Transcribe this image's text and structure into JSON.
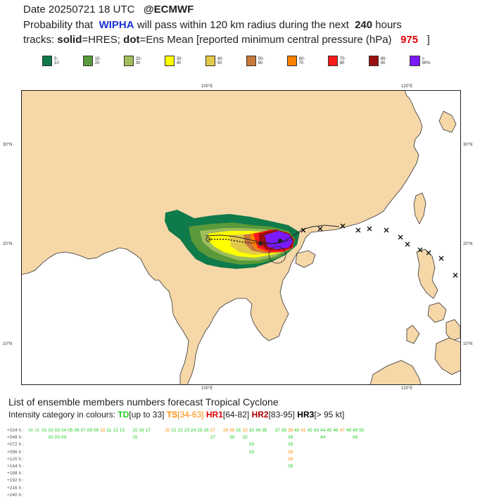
{
  "header": {
    "date_prefix": "Date",
    "date": "20250721",
    "time": "18 UTC",
    "source": "@ECMWF",
    "prob_prefix": "Probability that",
    "storm_name": "WIPHA",
    "prob_mid": "will pass within 120 km radius during the next",
    "hours": "240",
    "hours_suffix": "hours",
    "tracks_prefix": "tracks:",
    "solid_label": "solid",
    "solid_desc": "=HRES;",
    "dot_label": "dot",
    "dot_desc": "=Ens Mean [reported minimum central pressure (hPa)",
    "pressure": "975",
    "close_bracket": "]"
  },
  "legend": [
    {
      "label": "5-10",
      "color": "#0f7a4a"
    },
    {
      "label": "10-20",
      "color": "#5a9a3a"
    },
    {
      "label": "20-30",
      "color": "#9fbd5a"
    },
    {
      "label": "30-40",
      "color": "#ffff00"
    },
    {
      "label": "40-50",
      "color": "#e3c94a"
    },
    {
      "label": "50-60",
      "color": "#c8783a"
    },
    {
      "label": "60-70",
      "color": "#ff7f00"
    },
    {
      "label": "70-80",
      "color": "#ff1a1a"
    },
    {
      "label": "80-90",
      "color": "#9a0f0f"
    },
    {
      "label": "> 90%",
      "color": "#7a1aff"
    }
  ],
  "map": {
    "lon_ticks_top": [
      "100°E",
      "120°E"
    ],
    "lon_ticks_bottom": [
      "100°E",
      "120°E"
    ],
    "lat_ticks_left": [
      "30°N",
      "20°N",
      "10°N"
    ],
    "lat_ticks_right": [
      "30°N",
      "20°N",
      "10°N"
    ],
    "land_color": "#f6d7a8",
    "sea_color": "#ffffff"
  },
  "list": {
    "title": "List of ensemble members numbers forecast Tropical Cyclone",
    "intensity_prefix": "Intensity category in colours:",
    "td": "TD",
    "td_range": "[up to 33]",
    "ts": "TS",
    "ts_range": "[34-63]",
    "hr1": "HR1",
    "hr1_range": "[64-82]",
    "hr2": "HR2",
    "hr2_range": "[83-95]",
    "hr3": "HR3",
    "hr3_range": "[> 95 kt]"
  },
  "table": {
    "rows": [
      {
        "label": "+024 h :",
        "cells": [
          {
            "t": "hr",
            "c": "g"
          },
          {
            "t": "ct",
            "c": "g"
          },
          {
            "t": "01",
            "c": "g"
          },
          {
            "t": "02",
            "c": "g"
          },
          {
            "t": "03",
            "c": "g"
          },
          {
            "t": "04",
            "c": "g"
          },
          {
            "t": "05",
            "c": "g"
          },
          {
            "t": "06",
            "c": "g"
          },
          {
            "t": "07",
            "c": "g"
          },
          {
            "t": "08",
            "c": "g"
          },
          {
            "t": "09",
            "c": "g"
          },
          {
            "t": "10",
            "c": "o"
          },
          {
            "t": "11",
            "c": "g"
          },
          {
            "t": "12",
            "c": "g"
          },
          {
            "t": "13",
            "c": "g"
          },
          {
            "t": "15",
            "c": "g"
          },
          {
            "t": "16",
            "c": "g"
          },
          {
            "t": "17",
            "c": "g"
          },
          {
            "t": "20",
            "c": "o"
          },
          {
            "t": "21",
            "c": "g"
          },
          {
            "t": "22",
            "c": "g"
          },
          {
            "t": "23",
            "c": "g"
          },
          {
            "t": "24",
            "c": "g"
          },
          {
            "t": "25",
            "c": "g"
          },
          {
            "t": "26",
            "c": "g"
          },
          {
            "t": "27",
            "c": "o"
          },
          {
            "t": "29",
            "c": "o"
          },
          {
            "t": "30",
            "c": "o"
          },
          {
            "t": "31",
            "c": "g"
          },
          {
            "t": "32",
            "c": "o"
          },
          {
            "t": "33",
            "c": "g"
          },
          {
            "t": "34",
            "c": "g"
          },
          {
            "t": "35",
            "c": "g"
          },
          {
            "t": "37",
            "c": "g"
          },
          {
            "t": "38",
            "c": "g"
          },
          {
            "t": "39",
            "c": "o"
          },
          {
            "t": "40",
            "c": "g"
          },
          {
            "t": "41",
            "c": "o"
          },
          {
            "t": "42",
            "c": "g"
          },
          {
            "t": "43",
            "c": "g"
          },
          {
            "t": "44",
            "c": "g"
          },
          {
            "t": "45",
            "c": "g"
          },
          {
            "t": "46",
            "c": "g"
          },
          {
            "t": "47",
            "c": "o"
          },
          {
            "t": "48",
            "c": "g"
          },
          {
            "t": "49",
            "c": "g"
          },
          {
            "t": "50",
            "c": "g"
          }
        ]
      },
      {
        "label": "+048 h :",
        "cells": [
          {
            "t": "02",
            "c": "g"
          },
          {
            "t": "03",
            "c": "g"
          },
          {
            "t": "04",
            "c": "g"
          },
          {
            "t": "15",
            "c": "g"
          },
          {
            "t": "27",
            "c": "g"
          },
          {
            "t": "30",
            "c": "g"
          },
          {
            "t": "32",
            "c": "g"
          },
          {
            "t": "39",
            "c": "g"
          },
          {
            "t": "44",
            "c": "g"
          },
          {
            "t": "49",
            "c": "g"
          }
        ]
      },
      {
        "label": "+072 h :",
        "cells": [
          {
            "t": "33",
            "c": "g"
          },
          {
            "t": "39",
            "c": "g"
          }
        ]
      },
      {
        "label": "+096 h :",
        "cells": [
          {
            "t": "33",
            "c": "g"
          },
          {
            "t": "39",
            "c": "o"
          }
        ]
      },
      {
        "label": "+120 h :",
        "cells": [
          {
            "t": "39",
            "c": "o"
          }
        ]
      },
      {
        "label": "+144 h :",
        "cells": [
          {
            "t": "39",
            "c": "g"
          }
        ]
      },
      {
        "label": "+168 h :",
        "cells": []
      },
      {
        "label": "+192 h :",
        "cells": []
      },
      {
        "label": "+216 h :",
        "cells": []
      },
      {
        "label": "+240 h :",
        "cells": []
      }
    ]
  }
}
